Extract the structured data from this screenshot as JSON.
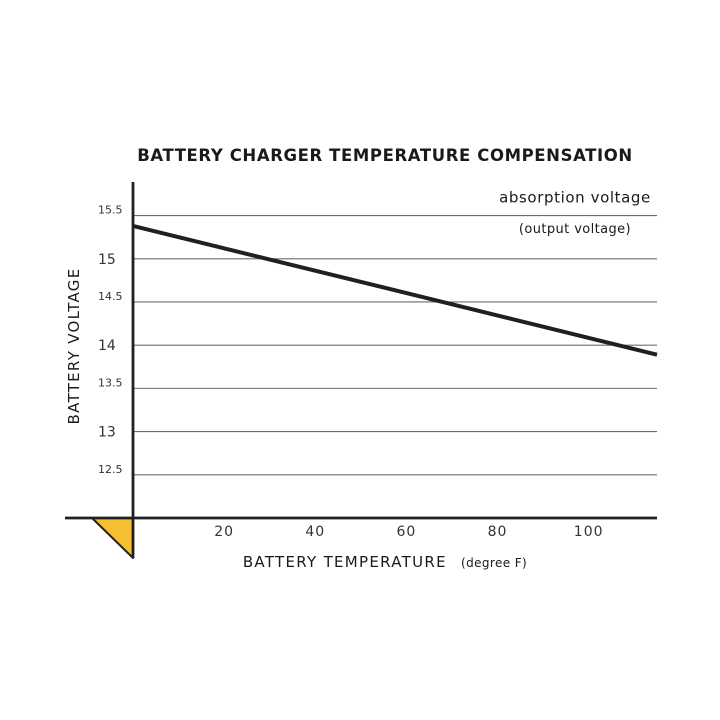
{
  "chart_data": {
    "type": "line",
    "title": "BATTERY CHARGER TEMPERATURE COMPENSATION",
    "xlabel": "BATTERY TEMPERATURE",
    "xlabel_unit": "(degree F)",
    "ylabel": "BATTERY VOLTAGE",
    "xlim": [
      0,
      115
    ],
    "ylim": [
      12,
      15.9
    ],
    "x_ticks": [
      {
        "value": 20,
        "label": "20"
      },
      {
        "value": 40,
        "label": "40"
      },
      {
        "value": 60,
        "label": "60"
      },
      {
        "value": 80,
        "label": "80"
      },
      {
        "value": 100,
        "label": "100"
      }
    ],
    "y_ticks": [
      {
        "value": 12.5,
        "label": "12.5",
        "major": false
      },
      {
        "value": 13,
        "label": "13",
        "major": true
      },
      {
        "value": 13.5,
        "label": "13.5",
        "major": false
      },
      {
        "value": 14,
        "label": "14",
        "major": true
      },
      {
        "value": 14.5,
        "label": "14.5",
        "major": false
      },
      {
        "value": 15,
        "label": "15",
        "major": true
      },
      {
        "value": 15.5,
        "label": "15.5",
        "major": false
      }
    ],
    "grid": "horizontal",
    "series": [
      {
        "points": [
          {
            "x": 0,
            "y": 15.38
          },
          {
            "x": 115,
            "y": 13.89
          }
        ],
        "color": "#231f20"
      }
    ],
    "annotations": [
      {
        "text": "absorption voltage",
        "near_x": 97,
        "near_y": 15.65
      },
      {
        "text": "(output voltage)",
        "near_x": 97,
        "near_y": 15.3
      }
    ],
    "colors": {
      "line": "#231f20",
      "axis": "#231f20",
      "grid": "#6e6e6e",
      "corner_mark": "#f5c133"
    }
  }
}
